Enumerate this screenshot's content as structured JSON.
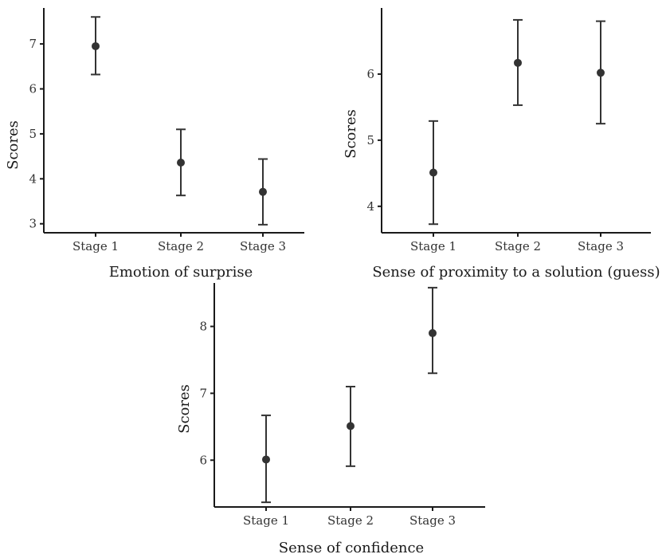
{
  "chart_data": [
    {
      "type": "scatter",
      "title": "",
      "xlabel": "Emotion of surprise",
      "ylabel": "Scores",
      "categories": [
        "Stage 1",
        "Stage 2",
        "Stage 3"
      ],
      "ylim": [
        2.8,
        7.8
      ],
      "yticks": [
        3,
        4,
        5,
        6,
        7
      ],
      "points": [
        {
          "x": "Stage 1",
          "y": 6.95,
          "low": 6.32,
          "high": 7.6
        },
        {
          "x": "Stage 2",
          "y": 4.36,
          "low": 3.63,
          "high": 5.1
        },
        {
          "x": "Stage 3",
          "y": 3.71,
          "low": 2.98,
          "high": 4.44
        }
      ],
      "grid": false
    },
    {
      "type": "scatter",
      "title": "",
      "xlabel": "Sense of proximity to a solution (guess)",
      "ylabel": "Scores",
      "categories": [
        "Stage 1",
        "Stage 2",
        "Stage 3"
      ],
      "ylim": [
        3.6,
        7.0
      ],
      "yticks": [
        4,
        5,
        6
      ],
      "points": [
        {
          "x": "Stage 1",
          "y": 4.51,
          "low": 3.73,
          "high": 5.29
        },
        {
          "x": "Stage 2",
          "y": 6.17,
          "low": 5.53,
          "high": 6.82
        },
        {
          "x": "Stage 3",
          "y": 6.02,
          "low": 5.25,
          "high": 6.8
        }
      ],
      "grid": false
    },
    {
      "type": "scatter",
      "title": "",
      "xlabel": "Sense of confidence",
      "ylabel": "Scores",
      "categories": [
        "Stage 1",
        "Stage 2",
        "Stage 3"
      ],
      "ylim": [
        5.3,
        8.65
      ],
      "yticks": [
        6,
        7,
        8
      ],
      "points": [
        {
          "x": "Stage 1",
          "y": 6.01,
          "low": 5.37,
          "high": 6.67
        },
        {
          "x": "Stage 2",
          "y": 6.51,
          "low": 5.91,
          "high": 7.1
        },
        {
          "x": "Stage 3",
          "y": 7.9,
          "low": 7.3,
          "high": 8.58
        }
      ],
      "grid": false
    }
  ]
}
